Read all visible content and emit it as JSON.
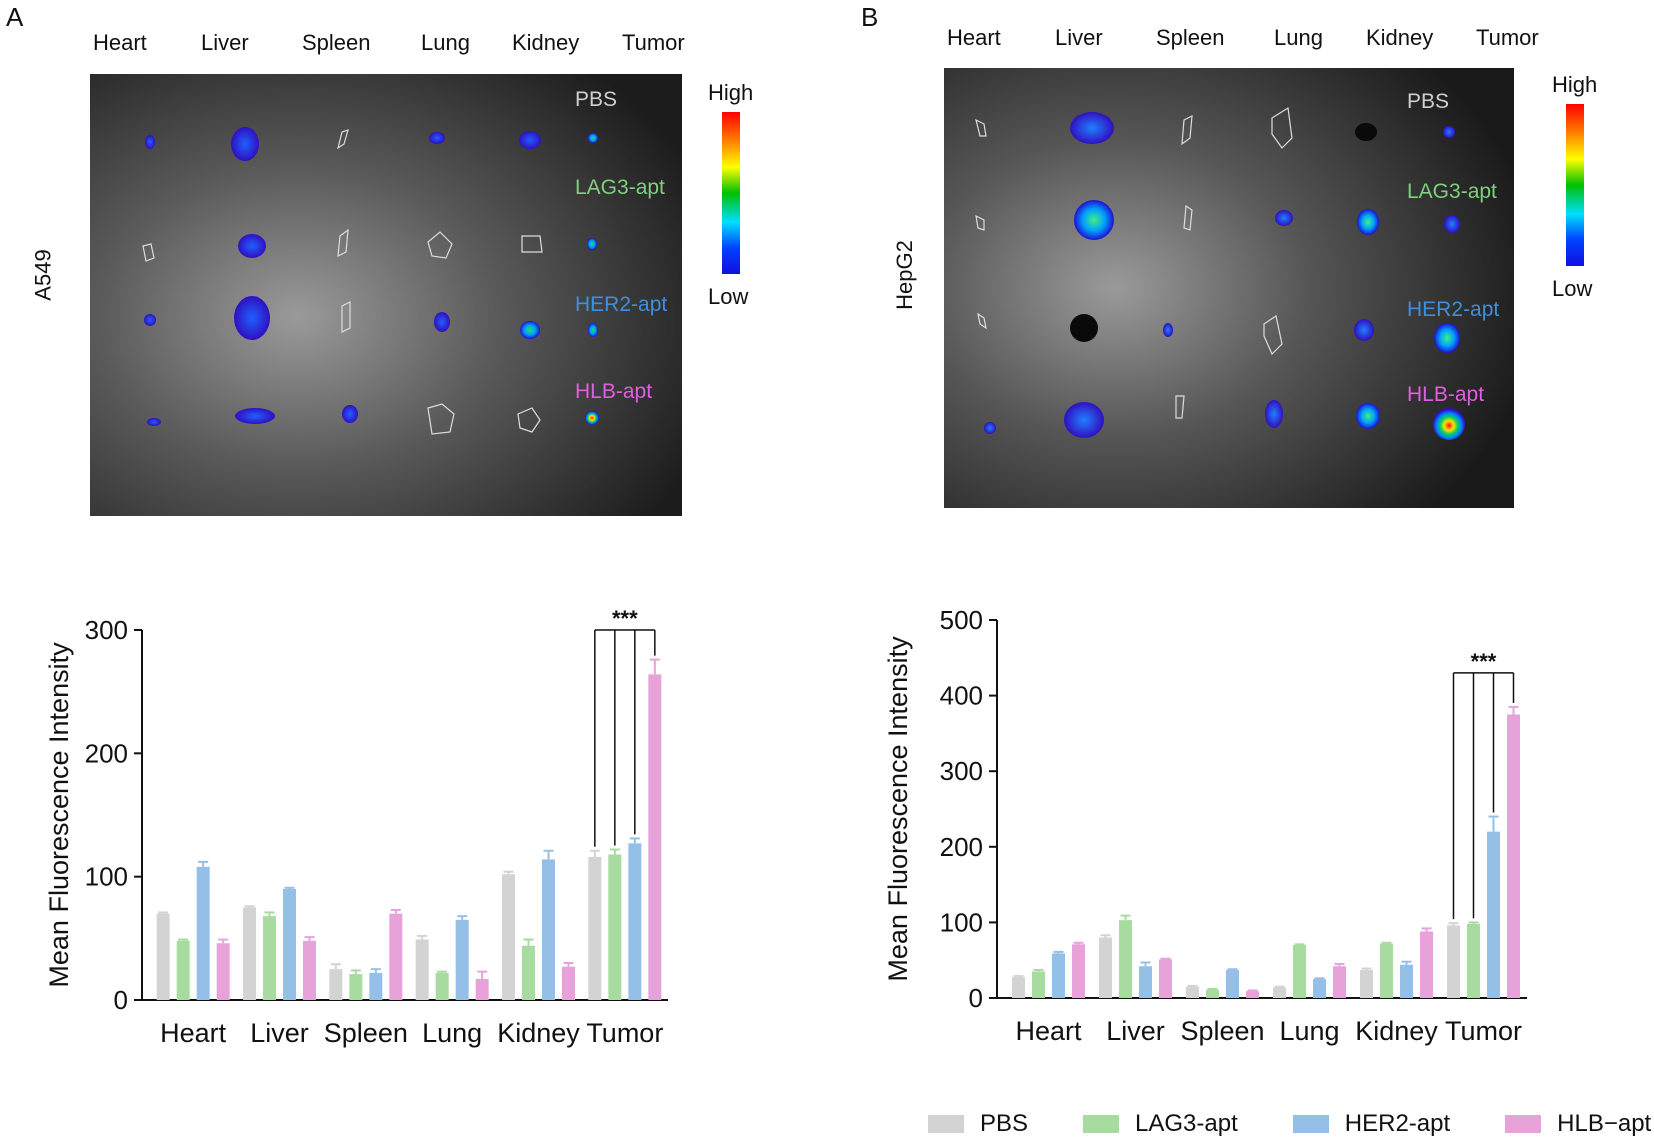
{
  "panels": [
    {
      "letter": "A",
      "cell_line": "A549",
      "organs": [
        "Heart",
        "Liver",
        "Spleen",
        "Lung",
        "Kidney",
        "Tumor"
      ],
      "group_labels": [
        "PBS",
        "LAG3-apt",
        "HER2-apt",
        "HLB-apt"
      ],
      "scale_high": "High",
      "scale_low": "Low"
    },
    {
      "letter": "B",
      "cell_line": "HepG2",
      "organs": [
        "Heart",
        "Liver",
        "Spleen",
        "Lung",
        "Kidney",
        "Tumor"
      ],
      "group_labels": [
        "PBS",
        "LAG3-apt",
        "HER2-apt",
        "HLB-apt"
      ],
      "scale_high": "High",
      "scale_low": "Low"
    }
  ],
  "colors": {
    "PBS": "#d3d3d3",
    "LAG3-apt": "#a8dba0",
    "HER2-apt": "#94bfe6",
    "HLB-apt": "#e7a2da",
    "PBS_label": "#cfcfcf",
    "LAG3_label": "#7fd07f",
    "HER2_label": "#3f8fdc",
    "HLB_label": "#e25ee0"
  },
  "chart_data": [
    {
      "type": "bar",
      "panel": "A",
      "categories": [
        "Heart",
        "Liver",
        "Spleen",
        "Lung",
        "Kidney",
        "Tumor"
      ],
      "series": [
        {
          "name": "PBS",
          "values": [
            70,
            75,
            25,
            49,
            102,
            116
          ],
          "errors": [
            1,
            1,
            4,
            3,
            2,
            5
          ]
        },
        {
          "name": "LAG3-apt",
          "values": [
            48,
            68,
            21,
            22,
            44,
            118
          ],
          "errors": [
            1,
            3,
            3,
            1,
            5,
            4
          ]
        },
        {
          "name": "HER2-apt",
          "values": [
            108,
            90,
            22,
            65,
            114,
            127
          ],
          "errors": [
            4,
            1,
            3,
            3,
            7,
            4
          ]
        },
        {
          "name": "HLB-apt",
          "values": [
            46,
            48,
            70,
            17,
            27,
            264
          ],
          "errors": [
            3,
            3,
            3,
            6,
            3,
            12
          ]
        }
      ],
      "title": "",
      "xlabel": "",
      "ylabel": "Mean Fluorescence Intensity",
      "ylim": [
        0,
        300
      ],
      "yticks": [
        "0",
        "100",
        "200",
        "300"
      ],
      "annotation": "***"
    },
    {
      "type": "bar",
      "panel": "B",
      "categories": [
        "Heart",
        "Liver",
        "Spleen",
        "Lung",
        "Kidney",
        "Tumor"
      ],
      "series": [
        {
          "name": "PBS",
          "values": [
            28,
            80,
            15,
            14,
            37,
            96
          ],
          "errors": [
            1,
            3,
            1,
            1,
            2,
            3
          ]
        },
        {
          "name": "LAG3-apt",
          "values": [
            35,
            103,
            11,
            70,
            72,
            98
          ],
          "errors": [
            2,
            6,
            1,
            1,
            1,
            2
          ]
        },
        {
          "name": "HER2-apt",
          "values": [
            59,
            42,
            37,
            25,
            44,
            220
          ],
          "errors": [
            2,
            5,
            1,
            1,
            4,
            20
          ]
        },
        {
          "name": "HLB-apt",
          "values": [
            71,
            51,
            9,
            42,
            88,
            375
          ],
          "errors": [
            2,
            1,
            1,
            3,
            4,
            10
          ]
        }
      ],
      "title": "",
      "xlabel": "",
      "ylabel": "Mean Fluorescence Intensity",
      "ylim": [
        0,
        500
      ],
      "yticks": [
        "0",
        "100",
        "200",
        "300",
        "400",
        "500"
      ],
      "annotation": "***"
    }
  ],
  "legend": [
    "PBS",
    "LAG3-apt",
    "HER2-apt",
    "HLB−apt"
  ]
}
